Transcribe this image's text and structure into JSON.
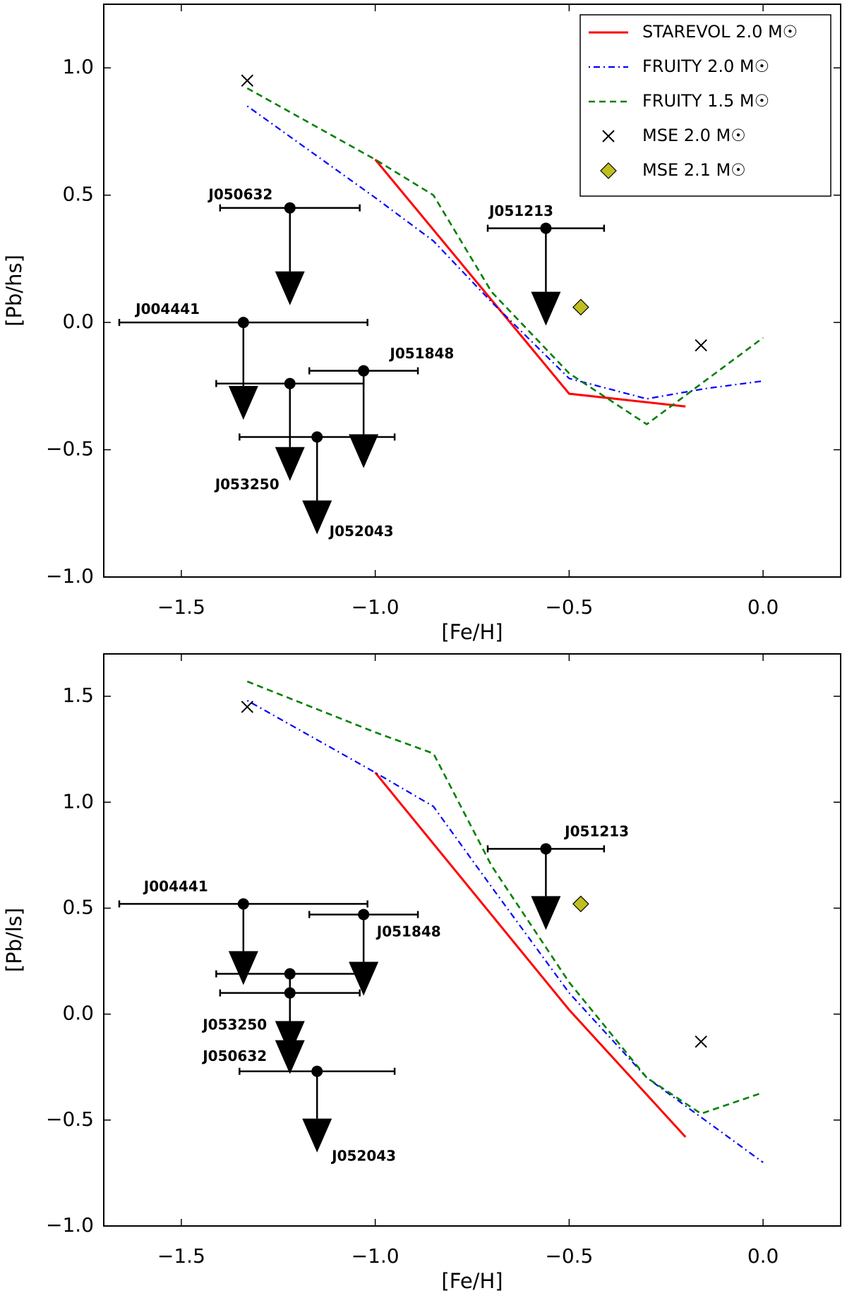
{
  "chart_data": [
    {
      "type": "line",
      "xlabel": "[Fe/H]",
      "ylabel": "[Pb/hs]",
      "xlim": [
        -1.7,
        0.2
      ],
      "ylim": [
        -1.0,
        1.25
      ],
      "xticks": [
        {
          "value": -1.5,
          "label": "−1.5"
        },
        {
          "value": -1.0,
          "label": "−1.0"
        },
        {
          "value": -0.5,
          "label": "−0.5"
        },
        {
          "value": 0.0,
          "label": "0.0"
        }
      ],
      "yticks": [
        {
          "value": -1.0,
          "label": "−1.0"
        },
        {
          "value": -0.5,
          "label": "−0.5"
        },
        {
          "value": 0.0,
          "label": "0.0"
        },
        0.5,
        {
          "value": 1.0,
          "label": "1.0"
        }
      ],
      "legend": "upper right",
      "series": [
        {
          "name": "STAREVOL 2.0 M☉",
          "color": "#ff0000",
          "style": "solid",
          "x": [
            -1.0,
            -0.5,
            -0.2
          ],
          "values": [
            0.64,
            -0.28,
            -0.33
          ]
        },
        {
          "name": "FRUITY 2.0 M☉",
          "color": "#0000ff",
          "style": "dashdot",
          "x": [
            -1.33,
            -1.0,
            -0.85,
            -0.7,
            -0.5,
            -0.3,
            -0.15,
            0.0
          ],
          "values": [
            0.85,
            0.49,
            0.32,
            0.08,
            -0.22,
            -0.3,
            -0.26,
            -0.23
          ]
        },
        {
          "name": "FRUITY 1.5 M☉",
          "color": "#008000",
          "style": "dashed",
          "x": [
            -1.33,
            -1.0,
            -0.85,
            -0.7,
            -0.5,
            -0.3,
            0.0
          ],
          "values": [
            0.92,
            0.64,
            0.5,
            0.12,
            -0.2,
            -0.4,
            -0.06
          ]
        },
        {
          "name": "MSE 2.0 M☉",
          "color": "#000000",
          "style": "cross",
          "x": [
            -1.33,
            -0.16
          ],
          "values": [
            0.95,
            -0.09
          ]
        },
        {
          "name": "MSE 2.1 M☉",
          "color": "#bfbf1f",
          "style": "diamond",
          "x": [
            -0.47
          ],
          "values": [
            0.06
          ]
        }
      ],
      "upper_limits": [
        {
          "label": "J050632",
          "x": -1.22,
          "y": 0.45,
          "xerr": 0.18
        },
        {
          "label": "J004441",
          "x": -1.34,
          "y": 0.0,
          "xerr": 0.32
        },
        {
          "label": "J051848",
          "x": -1.03,
          "y": -0.19,
          "xerr": 0.14
        },
        {
          "label": "J053250",
          "x": -1.22,
          "y": -0.24,
          "xerr": 0.19
        },
        {
          "label": "J052043",
          "x": -1.15,
          "y": -0.45,
          "xerr": 0.2
        },
        {
          "label": "J051213",
          "x": -0.56,
          "y": 0.37,
          "xerr": 0.15
        }
      ]
    },
    {
      "type": "line",
      "xlabel": "[Fe/H]",
      "ylabel": "[Pb/ls]",
      "xlim": [
        -1.7,
        0.2
      ],
      "ylim": [
        -1.0,
        1.7
      ],
      "xticks": [
        {
          "value": -1.5,
          "label": "−1.5"
        },
        {
          "value": -1.0,
          "label": "−1.0"
        },
        {
          "value": -0.5,
          "label": "−0.5"
        },
        {
          "value": 0.0,
          "label": "0.0"
        }
      ],
      "yticks": [
        {
          "value": -1.0,
          "label": "−1.0"
        },
        {
          "value": -0.5,
          "label": "−0.5"
        },
        {
          "value": 0.0,
          "label": "0.0"
        },
        0.5,
        {
          "value": 1.0,
          "label": "1.0"
        },
        1.5
      ],
      "series": [
        {
          "color": "#ff0000",
          "style": "solid",
          "x": [
            -1.0,
            -0.5,
            -0.2
          ],
          "values": [
            1.14,
            0.02,
            -0.58
          ]
        },
        {
          "color": "#0000ff",
          "style": "dashdot",
          "x": [
            -1.33,
            -1.0,
            -0.85,
            -0.7,
            -0.5,
            -0.3,
            0.0
          ],
          "values": [
            1.48,
            1.14,
            0.98,
            0.6,
            0.1,
            -0.3,
            -0.7
          ]
        },
        {
          "color": "#008000",
          "style": "dashed",
          "x": [
            -1.33,
            -1.0,
            -0.85,
            -0.7,
            -0.5,
            -0.3,
            -0.16,
            0.0
          ],
          "values": [
            1.57,
            1.33,
            1.23,
            0.7,
            0.15,
            -0.3,
            -0.47,
            -0.37
          ]
        },
        {
          "color": "#000000",
          "style": "cross",
          "x": [
            -1.33,
            -0.16
          ],
          "values": [
            1.45,
            -0.13
          ]
        },
        {
          "color": "#bfbf1f",
          "style": "diamond",
          "x": [
            -0.47
          ],
          "values": [
            0.52
          ]
        }
      ],
      "upper_limits": [
        {
          "label": "J051213",
          "x": -0.56,
          "y": 0.78,
          "xerr": 0.15
        },
        {
          "label": "J004441",
          "x": -1.34,
          "y": 0.52,
          "xerr": 0.32
        },
        {
          "label": "J051848",
          "x": -1.03,
          "y": 0.47,
          "xerr": 0.14
        },
        {
          "label": "J053250",
          "x": -1.22,
          "y": 0.19,
          "xerr": 0.19
        },
        {
          "label": "J050632",
          "x": -1.22,
          "y": 0.1,
          "xerr": 0.18
        },
        {
          "label": "J052043",
          "x": -1.15,
          "y": -0.27,
          "xerr": 0.2
        }
      ]
    }
  ]
}
